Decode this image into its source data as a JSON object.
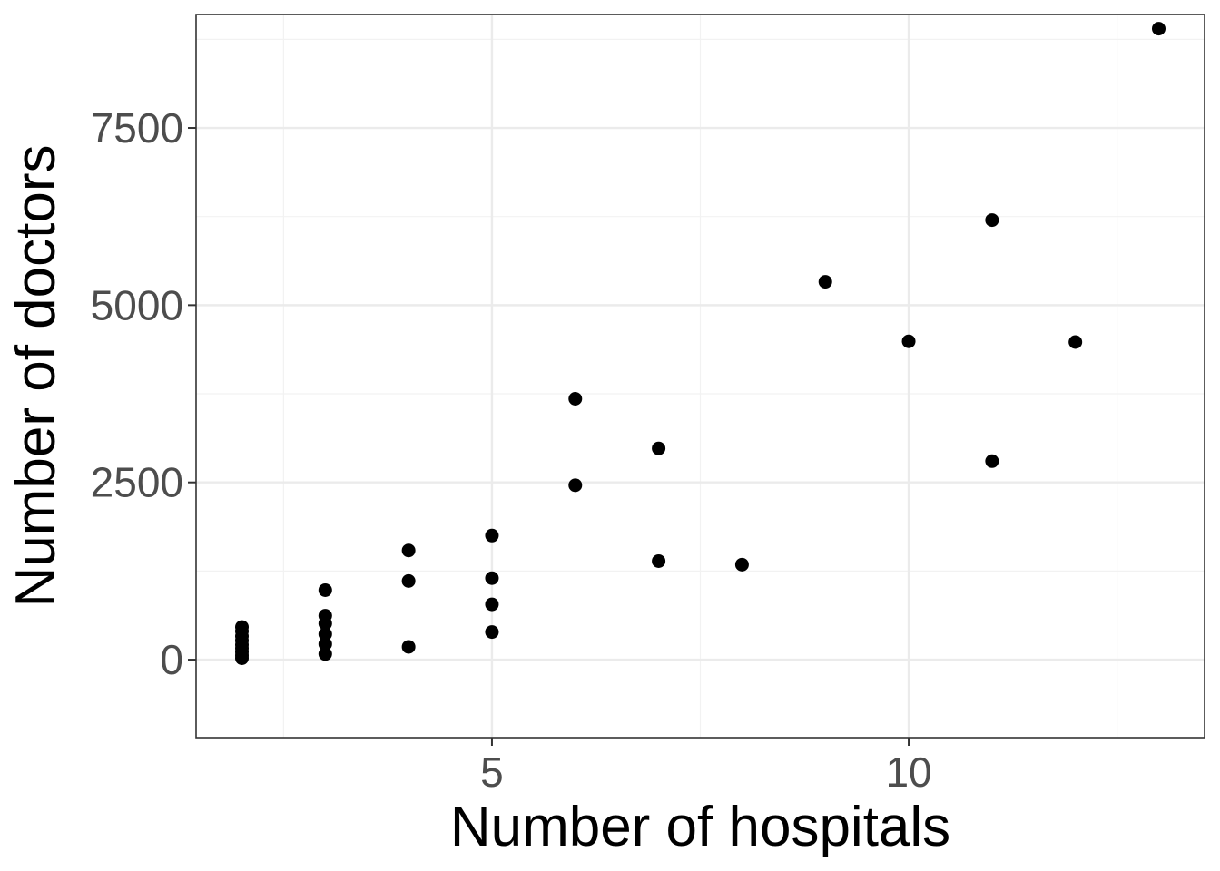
{
  "chart_data": {
    "type": "scatter",
    "xlabel": "Number of hospitals",
    "ylabel": "Number of doctors",
    "xlim": [
      1.45,
      13.55
    ],
    "ylim": [
      -1100,
      9100
    ],
    "x_ticks": [
      5,
      10
    ],
    "x_tick_labels": [
      "5",
      "10"
    ],
    "x_minor_ticks": [
      2.5,
      7.5,
      12.5
    ],
    "y_ticks": [
      0,
      2500,
      5000,
      7500
    ],
    "y_tick_labels": [
      "0",
      "2500",
      "5000",
      "7500"
    ],
    "y_minor_ticks": [
      1250,
      3750,
      6250,
      8750
    ],
    "grid": true,
    "colors": {
      "points": "#000000",
      "grid_major": "#ebebeb",
      "grid_minor": "#f2f2f2",
      "panel_border": "#333333",
      "tick_label": "#4d4d4d",
      "background": "#ffffff"
    },
    "points": [
      {
        "x": 2,
        "y": 460
      },
      {
        "x": 2,
        "y": 400
      },
      {
        "x": 2,
        "y": 330
      },
      {
        "x": 2,
        "y": 270
      },
      {
        "x": 2,
        "y": 210
      },
      {
        "x": 2,
        "y": 160
      },
      {
        "x": 2,
        "y": 110
      },
      {
        "x": 2,
        "y": 60
      },
      {
        "x": 2,
        "y": 20
      },
      {
        "x": 3,
        "y": 980
      },
      {
        "x": 3,
        "y": 620
      },
      {
        "x": 3,
        "y": 510
      },
      {
        "x": 3,
        "y": 360
      },
      {
        "x": 3,
        "y": 220
      },
      {
        "x": 3,
        "y": 80
      },
      {
        "x": 4,
        "y": 1540
      },
      {
        "x": 4,
        "y": 1110
      },
      {
        "x": 4,
        "y": 180
      },
      {
        "x": 5,
        "y": 1750
      },
      {
        "x": 5,
        "y": 1150
      },
      {
        "x": 5,
        "y": 780
      },
      {
        "x": 5,
        "y": 390
      },
      {
        "x": 6,
        "y": 3680
      },
      {
        "x": 6,
        "y": 2460
      },
      {
        "x": 7,
        "y": 2980
      },
      {
        "x": 7,
        "y": 1390
      },
      {
        "x": 8,
        "y": 1340
      },
      {
        "x": 9,
        "y": 5330
      },
      {
        "x": 10,
        "y": 4490
      },
      {
        "x": 11,
        "y": 6200
      },
      {
        "x": 11,
        "y": 2800
      },
      {
        "x": 12,
        "y": 4480
      },
      {
        "x": 13,
        "y": 8900
      }
    ]
  }
}
